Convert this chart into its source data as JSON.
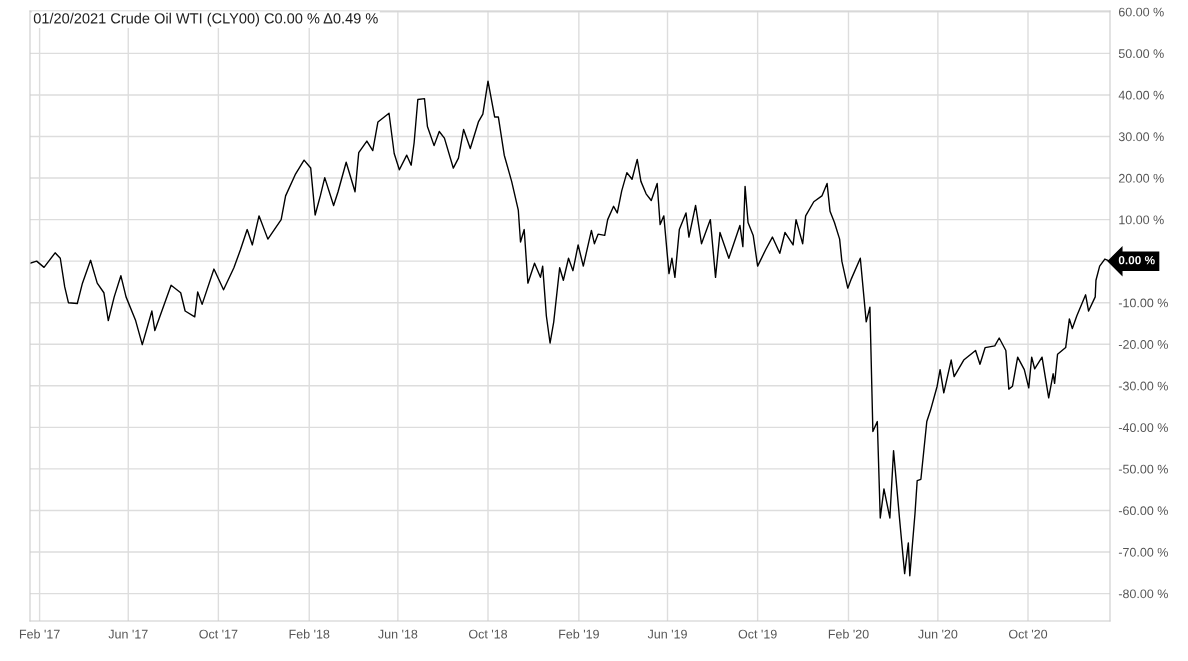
{
  "chart_data": {
    "type": "line",
    "title": "01/20/2021 Crude Oil WTI (CLY00) C0.00 % Δ0.49 %",
    "x": [
      "2017-01-19",
      "2017-01-28",
      "2017-02-07",
      "2017-02-22",
      "2017-03-01",
      "2017-03-07",
      "2017-03-12",
      "2017-03-24",
      "2017-03-31",
      "2017-04-11",
      "2017-04-20",
      "2017-04-29",
      "2017-05-05",
      "2017-05-13",
      "2017-05-22",
      "2017-05-29",
      "2017-06-11",
      "2017-06-20",
      "2017-07-03",
      "2017-07-07",
      "2017-07-29",
      "2017-08-11",
      "2017-08-17",
      "2017-08-30",
      "2017-09-03",
      "2017-09-09",
      "2017-09-25",
      "2017-10-08",
      "2017-10-22",
      "2017-10-31",
      "2017-11-09",
      "2017-11-16",
      "2017-11-25",
      "2017-12-07",
      "2017-12-25",
      "2017-12-31",
      "2018-01-13",
      "2018-01-25",
      "2018-02-03",
      "2018-02-09",
      "2018-02-16",
      "2018-02-22",
      "2018-03-06",
      "2018-03-12",
      "2018-03-23",
      "2018-04-04",
      "2018-04-09",
      "2018-04-20",
      "2018-04-28",
      "2018-05-05",
      "2018-05-20",
      "2018-05-27",
      "2018-06-03",
      "2018-06-13",
      "2018-06-19",
      "2018-06-23",
      "2018-06-28",
      "2018-07-07",
      "2018-07-11",
      "2018-07-20",
      "2018-07-27",
      "2018-08-03",
      "2018-08-15",
      "2018-08-22",
      "2018-08-29",
      "2018-09-07",
      "2018-09-18",
      "2018-09-24",
      "2018-10-01",
      "2018-10-10",
      "2018-10-15",
      "2018-10-23",
      "2018-11-02",
      "2018-11-11",
      "2018-11-14",
      "2018-11-19",
      "2018-11-24",
      "2018-12-03",
      "2018-12-11",
      "2018-12-14",
      "2018-12-19",
      "2018-12-24",
      "2018-12-29",
      "2019-01-06",
      "2019-01-11",
      "2019-01-18",
      "2019-01-24",
      "2019-01-31",
      "2019-02-07",
      "2019-02-18",
      "2019-02-22",
      "2019-02-27",
      "2019-03-08",
      "2019-03-12",
      "2019-03-20",
      "2019-03-25",
      "2019-03-31",
      "2019-04-07",
      "2019-04-14",
      "2019-04-21",
      "2019-04-26",
      "2019-05-03",
      "2019-05-10",
      "2019-05-18",
      "2019-05-22",
      "2019-05-27",
      "2019-06-03",
      "2019-06-07",
      "2019-06-11",
      "2019-06-17",
      "2019-06-26",
      "2019-06-30",
      "2019-07-09",
      "2019-07-17",
      "2019-07-29",
      "2019-08-05",
      "2019-08-11",
      "2019-08-23",
      "2019-09-07",
      "2019-09-11",
      "2019-09-14",
      "2019-09-18",
      "2019-09-25",
      "2019-10-01",
      "2019-10-12",
      "2019-10-21",
      "2019-10-31",
      "2019-11-07",
      "2019-11-18",
      "2019-11-22",
      "2019-12-01",
      "2019-12-05",
      "2019-12-16",
      "2019-12-27",
      "2020-01-03",
      "2020-01-07",
      "2020-01-13",
      "2020-01-20",
      "2020-01-23",
      "2020-01-31",
      "2020-02-05",
      "2020-02-17",
      "2020-02-25",
      "2020-03-01",
      "2020-03-05",
      "2020-03-11",
      "2020-03-15",
      "2020-03-20",
      "2020-03-28",
      "2020-04-02",
      "2020-04-10",
      "2020-04-17",
      "2020-04-22",
      "2020-04-24",
      "2020-05-01",
      "2020-05-04",
      "2020-05-09",
      "2020-05-17",
      "2020-05-22",
      "2020-05-31",
      "2020-06-04",
      "2020-06-09",
      "2020-06-19",
      "2020-06-23",
      "2020-07-06",
      "2020-07-22",
      "2020-07-28",
      "2020-08-04",
      "2020-08-17",
      "2020-08-23",
      "2020-09-01",
      "2020-09-05",
      "2020-09-10",
      "2020-09-17",
      "2020-09-26",
      "2020-10-02",
      "2020-10-06",
      "2020-10-10",
      "2020-10-20",
      "2020-10-29",
      "2020-11-04",
      "2020-11-06",
      "2020-11-10",
      "2020-11-21",
      "2020-11-26",
      "2020-11-30",
      "2020-12-06",
      "2020-12-18",
      "2020-12-22",
      "2020-12-31",
      "2021-01-01",
      "2021-01-06",
      "2021-01-13",
      "2021-01-20"
    ],
    "series": [
      {
        "color": "#000000",
        "values": [
          -0.5,
          0,
          -1.5,
          2,
          0.7,
          -6.2,
          -10,
          -10.2,
          -5.3,
          0.2,
          -5.3,
          -7.6,
          -14.3,
          -8.6,
          -3.5,
          -8.6,
          -14.3,
          -20.1,
          -12,
          -16.7,
          -5.8,
          -7.6,
          -12,
          -13.4,
          -7.4,
          -10.4,
          -1.9,
          -6.9,
          -1.6,
          2.8,
          7.6,
          3.9,
          10.9,
          5.3,
          10,
          15.7,
          20.8,
          24.3,
          22.4,
          11.1,
          15.7,
          20.1,
          13.4,
          16.7,
          23.8,
          16.7,
          26.1,
          28.9,
          26.6,
          33.5,
          35.6,
          25.9,
          22,
          25.5,
          23.1,
          28.5,
          38.9,
          39.1,
          32.4,
          27.8,
          31.2,
          29.6,
          22.4,
          24.8,
          31.7,
          27.1,
          33.5,
          35.4,
          43.3,
          34.7,
          34.7,
          25.5,
          19.2,
          12.3,
          4.6,
          7.6,
          -5.3,
          -0.5,
          -3.9,
          -1.2,
          -13.2,
          -19.7,
          -14.6,
          -1.6,
          -4.6,
          0.7,
          -2.3,
          3.9,
          -1.2,
          7.4,
          4.2,
          6.5,
          6.2,
          10,
          13.2,
          11.6,
          16.9,
          21.3,
          19.7,
          24.5,
          19.2,
          16.2,
          14.6,
          18.7,
          8.8,
          10.9,
          -3,
          0.7,
          -3.9,
          7.6,
          11.6,
          5.8,
          13.4,
          4.2,
          10,
          -3.9,
          6.9,
          0.7,
          8.6,
          3.5,
          18,
          9.3,
          6.2,
          -1.2,
          2.8,
          5.8,
          1.9,
          6.9,
          3.9,
          10,
          4.2,
          10.9,
          14.3,
          15.7,
          18.7,
          12,
          9.3,
          5.3,
          0,
          -6.5,
          -4.2,
          0.7,
          -14.6,
          -11.1,
          -41,
          -38.6,
          -61.8,
          -54.8,
          -61.8,
          -45.6,
          -61.8,
          -75.2,
          -67.8,
          -75.7,
          -60.8,
          -52.8,
          -52.5,
          -38.6,
          -35.9,
          -30.1,
          -26.1,
          -31.7,
          -23.8,
          -27.8,
          -23.8,
          -21.5,
          -24.8,
          -20.8,
          -20.4,
          -18.5,
          -21.5,
          -30.8,
          -30.1,
          -23.1,
          -26.1,
          -30.5,
          -23.1,
          -25.9,
          -23.1,
          -32.9,
          -27.1,
          -29.4,
          -22.4,
          -20.8,
          -13.9,
          -16.2,
          -13.2,
          -8.1,
          -12,
          -8.6,
          -4.6,
          -1.2,
          0.5,
          0
        ]
      }
    ],
    "xlim": [
      "2017-01-19",
      "2021-01-20"
    ],
    "xticks": [
      {
        "value": "2017-02-01",
        "label": "Feb '17"
      },
      {
        "value": "2017-06-01",
        "label": "Jun '17"
      },
      {
        "value": "2017-10-01",
        "label": "Oct '17"
      },
      {
        "value": "2018-02-01",
        "label": "Feb '18"
      },
      {
        "value": "2018-06-01",
        "label": "Jun '18"
      },
      {
        "value": "2018-10-01",
        "label": "Oct '18"
      },
      {
        "value": "2019-02-01",
        "label": "Feb '19"
      },
      {
        "value": "2019-06-01",
        "label": "Jun '19"
      },
      {
        "value": "2019-10-01",
        "label": "Oct '19"
      },
      {
        "value": "2020-02-01",
        "label": "Feb '20"
      },
      {
        "value": "2020-06-01",
        "label": "Jun '20"
      },
      {
        "value": "2020-10-01",
        "label": "Oct '20"
      }
    ],
    "ylim": [
      -86.6,
      60.2
    ],
    "yticks": [
      {
        "value": -80,
        "label": "-80.00 %"
      },
      {
        "value": -70,
        "label": "-70.00 %"
      },
      {
        "value": -60,
        "label": "-60.00 %"
      },
      {
        "value": -50,
        "label": "-50.00 %"
      },
      {
        "value": -40,
        "label": "-40.00 %"
      },
      {
        "value": -30,
        "label": "-30.00 %"
      },
      {
        "value": -20,
        "label": "-20.00 %"
      },
      {
        "value": -10,
        "label": "-10.00 %"
      },
      {
        "value": 0,
        "label": null
      },
      {
        "value": 10,
        "label": "10.00 %"
      },
      {
        "value": 20,
        "label": "20.00 %"
      },
      {
        "value": 30,
        "label": "30.00 %"
      },
      {
        "value": 40,
        "label": "40.00 %"
      },
      {
        "value": 50,
        "label": "50.00 %"
      },
      {
        "value": 60,
        "label": "60.00 %"
      }
    ],
    "grid": true,
    "annotations": [
      {
        "text": "0.00 %",
        "x": "2021-01-20",
        "y": 0
      }
    ]
  }
}
